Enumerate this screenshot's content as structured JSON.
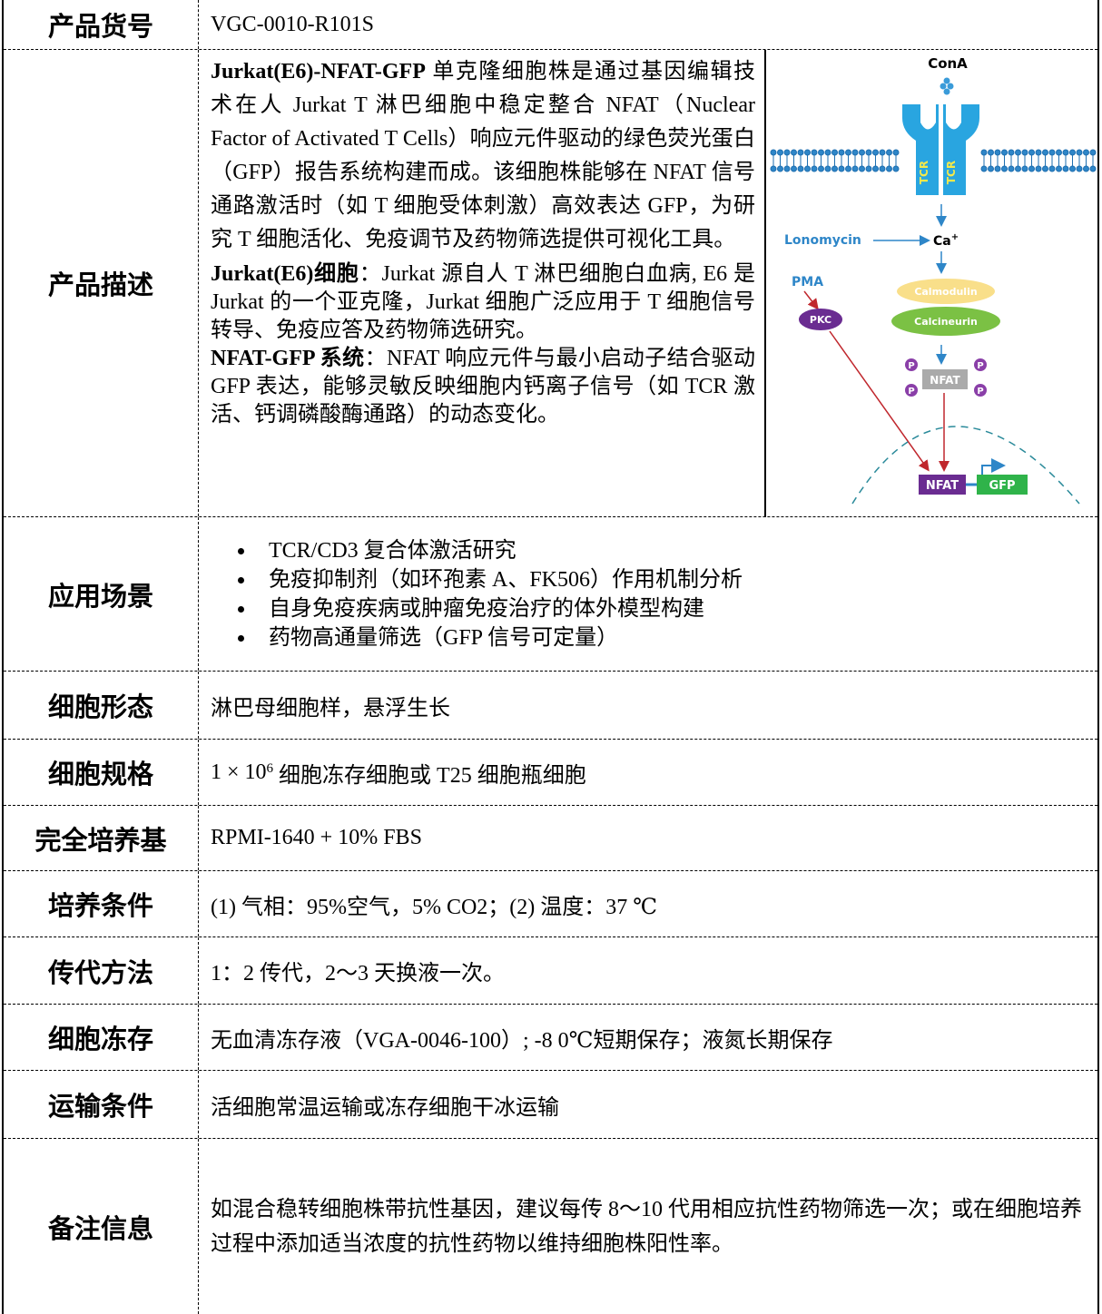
{
  "rows": [
    {
      "label": "产品货号",
      "text": "VGC-0010-R101S"
    },
    {
      "label": "产品描述",
      "paragraphs": [
        {
          "bold": "Jurkat(E6)-NFAT-GFP",
          "text": " 单克隆细胞株是通过基因编辑技术在人 Jurkat T 淋巴细胞中稳定整合 NFAT（Nuclear Factor of Activated T Cells）响应元件驱动的绿色荧光蛋白（GFP）报告系统构建而成。该细胞株能够在 NFAT 信号通路激活时（如 T 细胞受体刺激）高效表达 GFP，为研究 T 细胞活化、免疫调节及药物筛选提供可视化工具。"
        },
        {
          "bold": "Jurkat(E6)细胞",
          "text": "：Jurkat 源自人 T 淋巴细胞白血病, E6 是 Jurkat 的一个亚克隆，Jurkat 细胞广泛应用于 T 细胞信号转导、免疫应答及药物筛选研究。"
        },
        {
          "bold": "NFAT-GFP 系统",
          "text": "：NFAT 响应元件与最小启动子结合驱动 GFP 表达，能够灵敏反映细胞内钙离子信号（如 TCR 激活、钙调磷酸酶通路）的动态变化。"
        }
      ]
    },
    {
      "label": "应用场景",
      "items": [
        "TCR/CD3 复合体激活研究",
        "免疫抑制剂（如环孢素 A、FK506）作用机制分析",
        "自身免疫疾病或肿瘤免疫治疗的体外模型构建",
        "药物高通量筛选（GFP 信号可定量）"
      ]
    },
    {
      "label": "细胞形态",
      "text": "淋巴母细胞样，悬浮生长"
    },
    {
      "label": "细胞规格",
      "text": "1 × 10",
      "sup": "6",
      "rest": " 细胞冻存细胞或 T25 细胞瓶细胞"
    },
    {
      "label": "完全培养基",
      "text": "RPMI-1640 + 10% FBS"
    },
    {
      "label": "培养条件",
      "text": "(1) 气相：95%空气，5% CO2；(2) 温度：37 ℃"
    },
    {
      "label": "传代方法",
      "text": "1：2 传代，2～3 天换液一次。"
    },
    {
      "label": "细胞冻存",
      "text": "无血清冻存液（VGA-0046-100）; -8 0℃短期保存；液氮长期保存"
    },
    {
      "label": "运输条件",
      "text": "活细胞常温运输或冻存细胞干冰运输"
    },
    {
      "label": "备注信息",
      "text": "如混合稳转细胞株带抗性基因，建议每传 8～10 代用相应抗性药物筛选一次；或在细胞培养过程中添加适当浓度的抗性药物以维持细胞株阳性率。"
    }
  ],
  "diagram": {
    "cona": "ConA",
    "tcr": "TCR",
    "lonomycin": "Lonomycin",
    "ca": "Ca",
    "ca_sup": "+",
    "pma": "PMA",
    "calmodulin": "Calmodulin",
    "calcineurin": "Calcineurin",
    "pkc": "PKC",
    "nfat": "NFAT",
    "p": "P",
    "gfp": "GFP"
  }
}
